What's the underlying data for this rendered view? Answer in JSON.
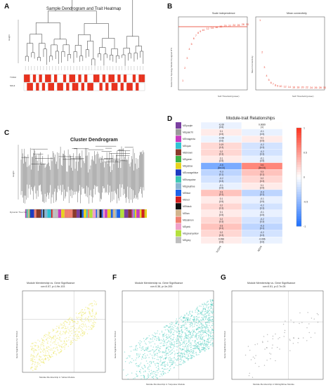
{
  "panels": {
    "A": {
      "letter": "A",
      "title": "Sample Dendrogram and Trait Heatmap",
      "ylabel": "Height",
      "traits": [
        "TCDHI",
        "NDHI"
      ],
      "trait_rows": [
        [
          1,
          1,
          0,
          1,
          0,
          1,
          0,
          1,
          1,
          0,
          1,
          0,
          0,
          1,
          0,
          1,
          1,
          0,
          1,
          0,
          1,
          0,
          0,
          1,
          1,
          0,
          1,
          0,
          1,
          1,
          0,
          1,
          0,
          1,
          0,
          0,
          1,
          0,
          1,
          1
        ],
        [
          0,
          1,
          1,
          0,
          1,
          0,
          1,
          0,
          1,
          1,
          0,
          1,
          1,
          0,
          1,
          0,
          1,
          1,
          0,
          1,
          0,
          1,
          1,
          0,
          0,
          1,
          0,
          1,
          0,
          1,
          1,
          0,
          1,
          0,
          1,
          1,
          0,
          1,
          0,
          0
        ]
      ],
      "colors": {
        "on": "#e8321e",
        "off": "#ffffff"
      }
    },
    "B": {
      "letter": "B",
      "left_title": "Scale independence",
      "right_title": "Mean connectivity",
      "left_ylabel": "Scale Free Topology Model Fit,signed R^2",
      "right_ylabel": "Mean Connectivity",
      "xlabel": "Soft Threshold (power)",
      "color": "#e8321e"
    },
    "C": {
      "letter": "C",
      "title": "Cluster Dendrogram",
      "ylabel": "Height",
      "color_bar_label": "Dynamic Tree Cut"
    },
    "D": {
      "letter": "D",
      "title": "Module-trait Relationships",
      "traits": [
        "TCDHI",
        "NDHI"
      ],
      "colorbar_ticks": [
        "1",
        "0.5",
        "0",
        "-0.5",
        "-1"
      ],
      "modules": [
        {
          "name": "MEpurple",
          "color": "#7a3fa0",
          "cells": [
            {
              "r": "-0.09",
              "p": "(0.6)"
            },
            {
              "r": "0.0069",
              "p": "(1)"
            }
          ]
        },
        {
          "name": "MEpaleT0",
          "color": "#9a9a9a",
          "cells": [
            {
              "r": "0.1",
              "p": "(0.5)"
            },
            {
              "r": "-0.1",
              "p": "(0.5)"
            }
          ]
        },
        {
          "name": "MEmagenta",
          "color": "#c83cc0",
          "cells": [
            {
              "r": "-0.08",
              "p": "(0.6)"
            },
            {
              "r": "0.1",
              "p": "(0.5)"
            }
          ]
        },
        {
          "name": "MEcyan",
          "color": "#2fc4d4",
          "cells": [
            {
              "r": "0.19",
              "p": "(0.3)"
            },
            {
              "r": "-0.2",
              "p": "(0.3)"
            }
          ]
        },
        {
          "name": "MEbrown",
          "color": "#8a3a2a",
          "cells": [
            {
              "r": "0.2",
              "p": "(0.3)"
            },
            {
              "r": "-0.2",
              "p": "(0.3)"
            }
          ]
        },
        {
          "name": "MEgreen",
          "color": "#3cb44a",
          "cells": [
            {
              "r": "0.1",
              "p": "(0.5)"
            },
            {
              "r": "-0.1",
              "p": "(0.5)"
            }
          ]
        },
        {
          "name": "MEyellow",
          "color": "#e8d21e",
          "cells": [
            {
              "r": "-0.6",
              "p": "(8e-04)"
            },
            {
              "r": "0.6",
              "p": "(8e-04)"
            }
          ]
        },
        {
          "name": "MEorangelblue",
          "color": "#1e3cc0",
          "cells": [
            {
              "r": "-0.3",
              "p": "(0.1)"
            },
            {
              "r": "0.3",
              "p": "(0.1)"
            }
          ]
        },
        {
          "name": "MEturquoise",
          "color": "#3cc8b4",
          "cells": [
            {
              "r": "-0.2",
              "p": "(0.3)"
            },
            {
              "r": "0.2",
              "p": "(0.3)"
            }
          ]
        },
        {
          "name": "MEgreyblue",
          "color": "#8ab4d2",
          "cells": [
            {
              "r": "-0.1",
              "p": "(0.5)"
            },
            {
              "r": "0.1",
              "p": "(0.5)"
            }
          ]
        },
        {
          "name": "MEblue",
          "color": "#1e64e8",
          "cells": [
            {
              "r": "0.3",
              "p": "(0.1)"
            },
            {
              "r": "-0.3",
              "p": "(0.1)"
            }
          ]
        },
        {
          "name": "MEred",
          "color": "#d21e1e",
          "cells": [
            {
              "r": "0.1",
              "p": "(0.5)"
            },
            {
              "r": "-0.1",
              "p": "(0.5)"
            }
          ]
        },
        {
          "name": "MEblack",
          "color": "#111111",
          "cells": [
            {
              "r": "0.2",
              "p": "(0.3)"
            },
            {
              "r": "-0.2",
              "p": "(0.3)"
            }
          ]
        },
        {
          "name": "MEtan",
          "color": "#d2b48c",
          "cells": [
            {
              "r": "0.1",
              "p": "(0.5)"
            },
            {
              "r": "-0.1",
              "p": "(0.5)"
            }
          ]
        },
        {
          "name": "MEsalmon",
          "color": "#f08070",
          "cells": [
            {
              "r": "0.2",
              "p": "(0.3)"
            },
            {
              "r": "-0.2",
              "p": "(0.3)"
            }
          ]
        },
        {
          "name": "MEpink",
          "color": "#f0a0c8",
          "cells": [
            {
              "r": "0.3",
              "p": "(0.1)"
            },
            {
              "r": "-0.3",
              "p": "(0.1)"
            }
          ]
        },
        {
          "name": "MEgreenyellow",
          "color": "#b4e03c",
          "cells": [
            {
              "r": "0.2",
              "p": "(0.3)"
            },
            {
              "r": "-0.2",
              "p": "(0.3)"
            }
          ]
        },
        {
          "name": "MEgrey",
          "color": "#bebebe",
          "cells": [
            {
              "r": "0.096",
              "p": "(0.6)"
            },
            {
              "r": "-0.096",
              "p": "(0.6)"
            }
          ]
        }
      ]
    },
    "E": {
      "letter": "E",
      "title": "Module Membership vs. Gene Significance",
      "subtitle": "cor=0.57, p=1.9e-103",
      "xlabel": "Module Membership in Yellow Module",
      "ylabel": "Gene Significance for TCDHI",
      "point_color": "#e8e040"
    },
    "F": {
      "letter": "F",
      "title": "Module Membership vs. Gene Significance",
      "subtitle": "cor=0.36, p<1e-200",
      "xlabel": "Module Membership in Turquoise Module",
      "ylabel": "Gene Significance for TCDHI",
      "point_color": "#40c8b8"
    },
    "G": {
      "letter": "G",
      "title": "Module Membership vs. Gene Significance",
      "subtitle": "cor=0.51, p=2.7e-05",
      "xlabel": "Module Membership in Midnightblue Module",
      "ylabel": "Gene Significance for TCDHI",
      "point_color": "#777777"
    }
  }
}
